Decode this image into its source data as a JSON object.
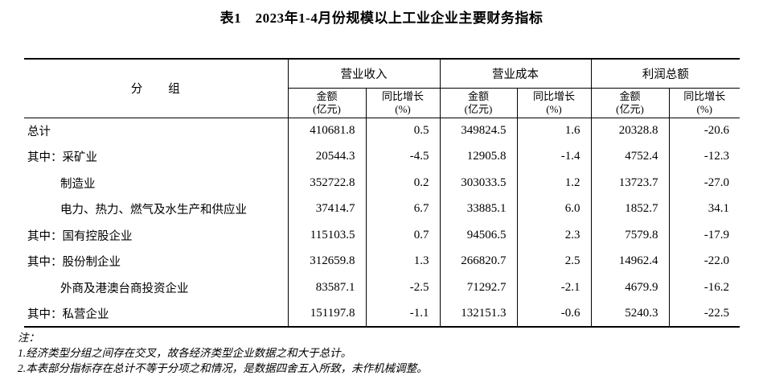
{
  "title": "表1　2023年1-4月份规模以上工业企业主要财务指标",
  "table": {
    "group_col_header": "分　　组",
    "group_headers": {
      "revenue": "营业收入",
      "cost": "营业成本",
      "profit": "利润总额"
    },
    "sub_headers": {
      "amount_line1": "金额",
      "amount_line2": "(亿元)",
      "growth_line1": "同比增长",
      "growth_line2": "(%)"
    },
    "rows": [
      {
        "label": "总计",
        "revenue": "410681.8",
        "revenue_growth": "0.5",
        "cost": "349824.5",
        "cost_growth": "1.6",
        "profit": "20328.8",
        "profit_growth": "-20.6"
      },
      {
        "label": "其中：采矿业",
        "revenue": "20544.3",
        "revenue_growth": "-4.5",
        "cost": "12905.8",
        "cost_growth": "-1.4",
        "profit": "4752.4",
        "profit_growth": "-12.3"
      },
      {
        "label": "制造业",
        "revenue": "352722.8",
        "revenue_growth": "0.2",
        "cost": "303033.5",
        "cost_growth": "1.2",
        "profit": "13723.7",
        "profit_growth": "-27.0"
      },
      {
        "label": "电力、热力、燃气及水生产和供应业",
        "revenue": "37414.7",
        "revenue_growth": "6.7",
        "cost": "33885.1",
        "cost_growth": "6.0",
        "profit": "1852.7",
        "profit_growth": "34.1"
      },
      {
        "label": "其中：国有控股企业",
        "revenue": "115103.5",
        "revenue_growth": "0.7",
        "cost": "94506.5",
        "cost_growth": "2.3",
        "profit": "7579.8",
        "profit_growth": "-17.9"
      },
      {
        "label": "其中：股份制企业",
        "revenue": "312659.8",
        "revenue_growth": "1.3",
        "cost": "266820.7",
        "cost_growth": "2.5",
        "profit": "14962.4",
        "profit_growth": "-22.0"
      },
      {
        "label": "外商及港澳台商投资企业",
        "revenue": "83587.1",
        "revenue_growth": "-2.5",
        "cost": "71292.7",
        "cost_growth": "-2.1",
        "profit": "4679.9",
        "profit_growth": "-16.2"
      },
      {
        "label": "其中：私营企业",
        "revenue": "151197.8",
        "revenue_growth": "-1.1",
        "cost": "132151.3",
        "cost_growth": "-0.6",
        "profit": "5240.3",
        "profit_growth": "-22.5"
      }
    ],
    "notes": {
      "heading": "注：",
      "items": [
        "1.经济类型分组之间存在交叉，故各经济类型企业数据之和大于总计。",
        "2.本表部分指标存在总计不等于分项之和情况，是数据四舍五入所致，未作机械调整。"
      ]
    }
  }
}
